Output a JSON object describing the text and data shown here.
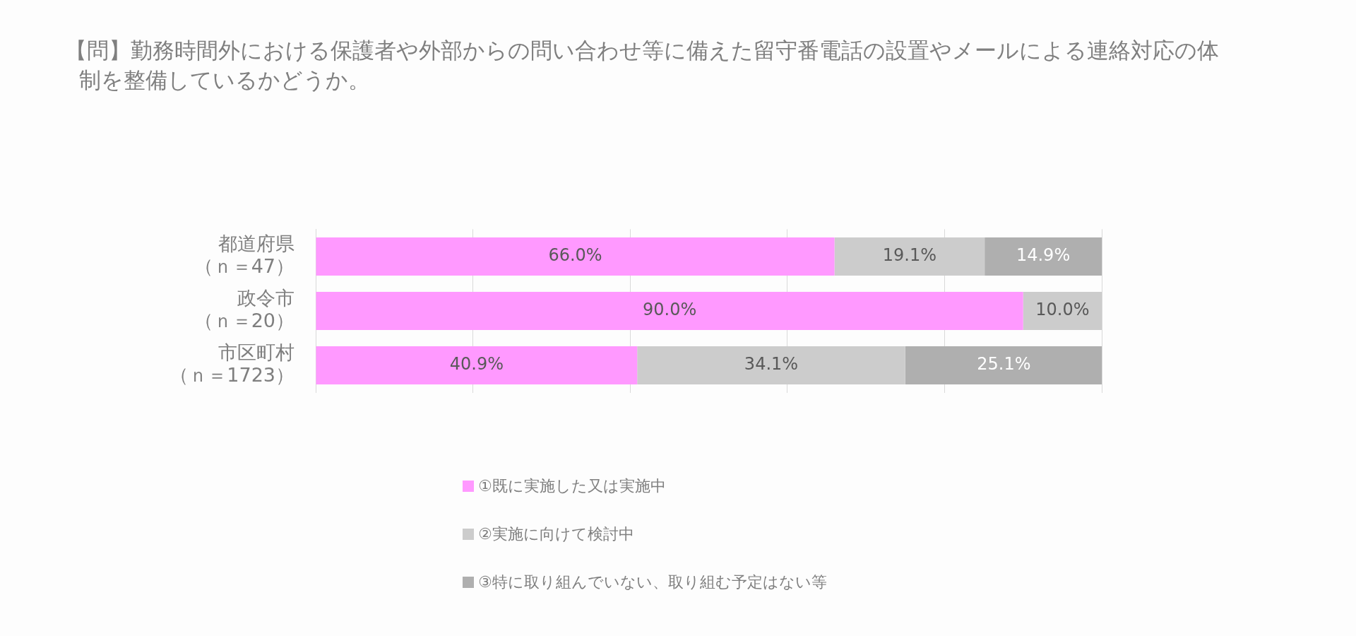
{
  "chart_data": {
    "type": "bar",
    "orientation": "horizontal",
    "stacked": true,
    "title": "【問】勤務時間外における保護者や外部からの問い合わせ等に備えた留守番電話の設置やメールによる連絡対応の体制を整備しているかどうか。",
    "categories": [
      "都道府県（ｎ＝47）",
      "政令市（ｎ＝20）",
      "市区町村（ｎ＝1723）"
    ],
    "series": [
      {
        "name": "①既に実施した又は実施中",
        "color": "#ff99ff",
        "values": [
          66.0,
          90.0,
          40.9
        ],
        "value_labels": [
          "66.0%",
          "90.0%",
          "40.9%"
        ]
      },
      {
        "name": "②実施に向けて検討中",
        "color": "#cccccc",
        "values": [
          19.1,
          10.0,
          34.1
        ],
        "value_labels": [
          "19.1%",
          "10.0%",
          "34.1%"
        ]
      },
      {
        "name": "③特に取り組んでいない、取り組む予定はない等",
        "color": "#afafaf",
        "values": [
          14.9,
          null,
          25.1
        ],
        "value_labels": [
          "14.9%",
          null,
          "25.1%"
        ]
      }
    ],
    "xlim": [
      0,
      100
    ],
    "xticks": [
      {
        "value": 0,
        "label": null
      },
      {
        "value": 20,
        "label": null
      },
      {
        "value": 40,
        "label": null
      },
      {
        "value": 60,
        "label": null
      },
      {
        "value": 80,
        "label": null
      },
      {
        "value": 100,
        "label": null
      }
    ],
    "tick_labels": "y",
    "grid": "x",
    "legend": "bottom"
  }
}
